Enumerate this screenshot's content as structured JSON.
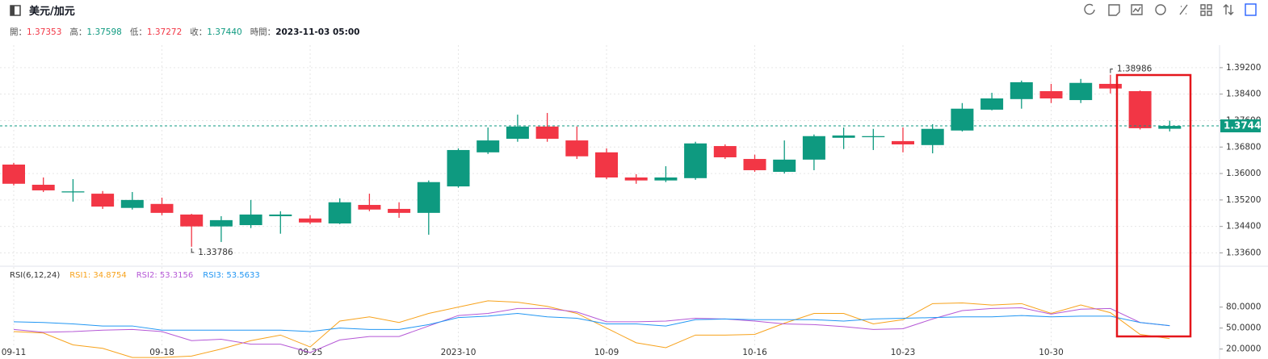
{
  "header": {
    "title": "美元/加元",
    "fields": [
      {
        "label": "開：",
        "value": "1.37353",
        "color": "#f23645"
      },
      {
        "label": "高：",
        "value": "1.37598",
        "color": "#0e9a80"
      },
      {
        "label": "低：",
        "value": "1.37272",
        "color": "#f23645"
      },
      {
        "label": "收：",
        "value": "1.37440",
        "color": "#0e9a80"
      },
      {
        "label": "時間：",
        "value": "2023-11-03 05:00",
        "color": "#131722"
      }
    ]
  },
  "chart_data": [
    {
      "type": "candlestick",
      "categories": [
        "09-11",
        null,
        null,
        null,
        null,
        "09-18",
        null,
        null,
        null,
        null,
        "09-25",
        null,
        null,
        null,
        null,
        "2023-10",
        null,
        null,
        null,
        null,
        "10-09",
        null,
        null,
        null,
        null,
        "10-16",
        null,
        null,
        null,
        null,
        "10-23",
        null,
        null,
        null,
        null,
        "10-30",
        null,
        null,
        null,
        null
      ],
      "open": [
        1.3627,
        1.3566,
        1.3544,
        1.3539,
        1.3496,
        1.3508,
        1.3476,
        1.344,
        1.3444,
        1.3471,
        1.3464,
        1.3449,
        1.3505,
        1.3493,
        1.3481,
        1.3561,
        1.3664,
        1.3705,
        1.3742,
        1.37,
        1.3664,
        1.3588,
        1.3579,
        1.3586,
        1.3683,
        1.3644,
        1.3605,
        1.3642,
        1.3708,
        1.3712,
        1.3698,
        1.3686,
        1.373,
        1.3793,
        1.3825,
        1.3849,
        1.3822,
        1.3871,
        1.3849,
        1.37353
      ],
      "high": [
        1.3632,
        1.3588,
        1.3583,
        1.3547,
        1.3544,
        1.3527,
        1.3478,
        1.3471,
        1.352,
        1.3486,
        1.3474,
        1.3525,
        1.3539,
        1.3513,
        1.3579,
        1.3676,
        1.3739,
        1.3778,
        1.3783,
        1.3742,
        1.3676,
        1.3598,
        1.3622,
        1.3696,
        1.3688,
        1.3657,
        1.37,
        1.3718,
        1.3739,
        1.3735,
        1.3739,
        1.3749,
        1.3813,
        1.3844,
        1.3881,
        1.3871,
        1.3886,
        1.38986,
        1.3851,
        1.37598
      ],
      "low": [
        1.3564,
        1.3544,
        1.3515,
        1.3493,
        1.3491,
        1.3474,
        1.33786,
        1.3393,
        1.3435,
        1.3418,
        1.3447,
        1.3447,
        1.3486,
        1.3466,
        1.3415,
        1.3557,
        1.3659,
        1.3696,
        1.3696,
        1.3644,
        1.3583,
        1.3569,
        1.3574,
        1.3581,
        1.3644,
        1.3605,
        1.36,
        1.361,
        1.3674,
        1.3671,
        1.3664,
        1.3661,
        1.3727,
        1.3791,
        1.3796,
        1.3813,
        1.3813,
        1.3842,
        1.3733,
        1.37272
      ],
      "close": [
        1.3569,
        1.3549,
        1.3546,
        1.35,
        1.352,
        1.3481,
        1.344,
        1.3459,
        1.3476,
        1.3476,
        1.3452,
        1.3513,
        1.3491,
        1.3481,
        1.3574,
        1.3671,
        1.37,
        1.3742,
        1.3705,
        1.3652,
        1.3588,
        1.3579,
        1.3588,
        1.3691,
        1.3649,
        1.361,
        1.3642,
        1.3713,
        1.3715,
        1.3713,
        1.3688,
        1.3735,
        1.3796,
        1.3827,
        1.3876,
        1.3827,
        1.3874,
        1.3857,
        1.3737,
        1.3744
      ],
      "up_color": "#0e9a80",
      "down_color": "#f23645",
      "last_label": "1.37440",
      "ylim": [
        1.3327,
        1.3988
      ],
      "yticks": [
        {
          "value": 1.392,
          "label": "1.39200"
        },
        {
          "value": 1.384,
          "label": "1.38400"
        },
        {
          "value": 1.376,
          "label": "1.37600"
        },
        {
          "value": 1.368,
          "label": "1.36800"
        },
        {
          "value": 1.36,
          "label": "1.36000"
        },
        {
          "value": 1.352,
          "label": "1.35200"
        },
        {
          "value": 1.344,
          "label": "1.34400"
        },
        {
          "value": 1.336,
          "label": "1.33600"
        }
      ],
      "grid": true
    },
    {
      "type": "line",
      "title": "RSI(6,12,24)",
      "series": [
        {
          "name": "RSI1: 34.8754",
          "color": "#f7a21b",
          "values": [
            45,
            43,
            26,
            21,
            8,
            8,
            10,
            20,
            32,
            40,
            23,
            60,
            66,
            58,
            71,
            80,
            89,
            87,
            81,
            71,
            50,
            29,
            22,
            40,
            40,
            41,
            57,
            71,
            71,
            56,
            62,
            85,
            86,
            83,
            85,
            71,
            83,
            72,
            41,
            34.8754
          ]
        },
        {
          "name": "RSI2: 53.3156",
          "color": "#b558d6",
          "values": [
            48,
            44,
            45,
            47,
            48,
            45,
            32,
            34,
            27,
            27,
            15,
            33,
            38,
            38,
            53,
            68,
            71,
            78,
            78,
            73,
            59,
            59,
            60,
            64,
            63,
            60,
            56,
            55,
            52,
            48,
            49,
            63,
            75,
            78,
            79,
            70,
            77,
            78,
            58,
            53.3156
          ]
        },
        {
          "name": "RSI3: 53.5633",
          "color": "#2196f3",
          "values": [
            59,
            58,
            56,
            53,
            53,
            47,
            47,
            47,
            47,
            47,
            45,
            50,
            48,
            48,
            55,
            65,
            67,
            71,
            66,
            64,
            56,
            56,
            53,
            62,
            63,
            62,
            62,
            62,
            60,
            63,
            64,
            65,
            66,
            66,
            68,
            66,
            67,
            67,
            58,
            53.5633
          ]
        }
      ],
      "ylim": [
        6,
        135
      ],
      "yticks": [
        {
          "value": 80,
          "label": "80.0000"
        },
        {
          "value": 50,
          "label": "50.0000"
        },
        {
          "value": 20,
          "label": "20.0000"
        }
      ]
    }
  ]
}
